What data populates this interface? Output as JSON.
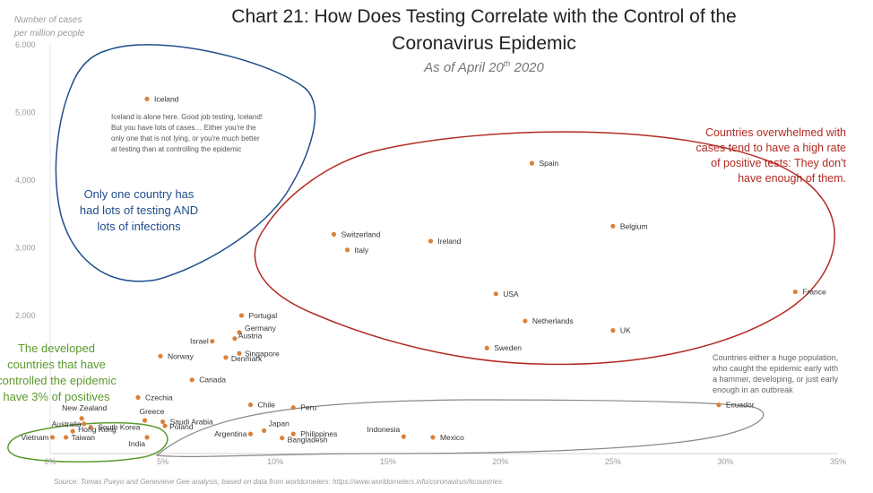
{
  "chart_data": {
    "type": "scatter",
    "title_line1": "Chart 21: How Does Testing Correlate with the Control of the",
    "title_line2": "Coronavirus Epidemic",
    "subtitle_prefix": "As of April 20",
    "subtitle_sup": "th",
    "subtitle_suffix": " 2020",
    "ylabel_line1": "Number of cases",
    "ylabel_line2": "per million people",
    "xlim": [
      0,
      35
    ],
    "ylim": [
      0,
      6000
    ],
    "x_ticks": [
      0,
      5,
      10,
      15,
      20,
      25,
      30,
      35
    ],
    "x_tick_labels": [
      "0%",
      "5%",
      "10%",
      "15%",
      "20%",
      "25%",
      "30%",
      "35%"
    ],
    "y_ticks": [
      2000,
      3000,
      4000,
      5000,
      6000
    ],
    "y_tick_labels": [
      "2,000",
      "3,000",
      "4,000",
      "5,000",
      "6,000"
    ],
    "point_color": "#d9823b",
    "points": [
      {
        "label": "Iceland",
        "x": 4.3,
        "y": 5200
      },
      {
        "label": "Spain",
        "x": 21.4,
        "y": 4250
      },
      {
        "label": "Belgium",
        "x": 25.0,
        "y": 3320
      },
      {
        "label": "Switzerland",
        "x": 12.6,
        "y": 3200
      },
      {
        "label": "Ireland",
        "x": 16.9,
        "y": 3100
      },
      {
        "label": "Italy",
        "x": 13.2,
        "y": 2970
      },
      {
        "label": "France",
        "x": 33.1,
        "y": 2350
      },
      {
        "label": "USA",
        "x": 19.8,
        "y": 2320
      },
      {
        "label": "Netherlands",
        "x": 21.1,
        "y": 1920
      },
      {
        "label": "UK",
        "x": 25.0,
        "y": 1780
      },
      {
        "label": "Sweden",
        "x": 19.4,
        "y": 1520
      },
      {
        "label": "Portugal",
        "x": 8.5,
        "y": 2000
      },
      {
        "label": "Germany",
        "x": 8.4,
        "y": 1750
      },
      {
        "label": "Austria",
        "x": 8.2,
        "y": 1660
      },
      {
        "label": "Israel",
        "x": 7.2,
        "y": 1620
      },
      {
        "label": "Singapore",
        "x": 8.4,
        "y": 1440
      },
      {
        "label": "Denmark",
        "x": 7.8,
        "y": 1380
      },
      {
        "label": "Norway",
        "x": 4.9,
        "y": 1400
      },
      {
        "label": "Canada",
        "x": 6.3,
        "y": 1050
      },
      {
        "label": "Czechia",
        "x": 3.9,
        "y": 790
      },
      {
        "label": "Chile",
        "x": 8.9,
        "y": 680
      },
      {
        "label": "Peru",
        "x": 10.8,
        "y": 640
      },
      {
        "label": "Ecuador",
        "x": 29.7,
        "y": 680
      },
      {
        "label": "New Zealand",
        "x": 1.4,
        "y": 480
      },
      {
        "label": "Greece",
        "x": 4.2,
        "y": 450
      },
      {
        "label": "Saudi Arabia",
        "x": 5.0,
        "y": 430
      },
      {
        "label": "Australia",
        "x": 1.5,
        "y": 400
      },
      {
        "label": "South Korea",
        "x": 1.8,
        "y": 350
      },
      {
        "label": "Poland",
        "x": 5.1,
        "y": 370
      },
      {
        "label": "Hong Kong",
        "x": 1.0,
        "y": 290
      },
      {
        "label": "Vietnam",
        "x": 0.1,
        "y": 200
      },
      {
        "label": "Taiwan",
        "x": 0.7,
        "y": 200
      },
      {
        "label": "India",
        "x": 4.3,
        "y": 200
      },
      {
        "label": "Japan",
        "x": 9.5,
        "y": 300
      },
      {
        "label": "Philippines",
        "x": 10.8,
        "y": 250
      },
      {
        "label": "Argentina",
        "x": 8.9,
        "y": 250
      },
      {
        "label": "Bangladesh",
        "x": 10.3,
        "y": 190
      },
      {
        "label": "Indonesia",
        "x": 15.7,
        "y": 210
      },
      {
        "label": "Mexico",
        "x": 17.0,
        "y": 200
      }
    ],
    "annotations": {
      "iceland_note": [
        "Iceland is alone here. Good job testing, Iceland!",
        "But you have lots of cases… Either you're the",
        "only one that is not lying, or you're much better",
        "at testing than at controlling the epidemic"
      ],
      "blue": [
        "Only one country has",
        "had lots of testing AND",
        "lots of infections"
      ],
      "red": [
        "Countries overwhelmed with",
        "cases tend to have a high rate",
        "of positive tests: They don't",
        "have enough of them."
      ],
      "green": [
        "The developed",
        "countries that have",
        "controlled the epidemic",
        "have 3% of positives"
      ],
      "gray": [
        "Countries either a huge population,",
        "who caught the epidemic early with",
        "a hammer, developing, or just early",
        "enough in an outbreak"
      ]
    },
    "colors": {
      "blue": "#1f4e8c",
      "red": "#b22a22",
      "green": "#5b9a2c",
      "gray": "#888888"
    },
    "source": "Source: Tomas Pueyo and Genevieve Gee analysis, based on data from worldometers: https://www.worldometers.info/coronavirus/#countries"
  }
}
